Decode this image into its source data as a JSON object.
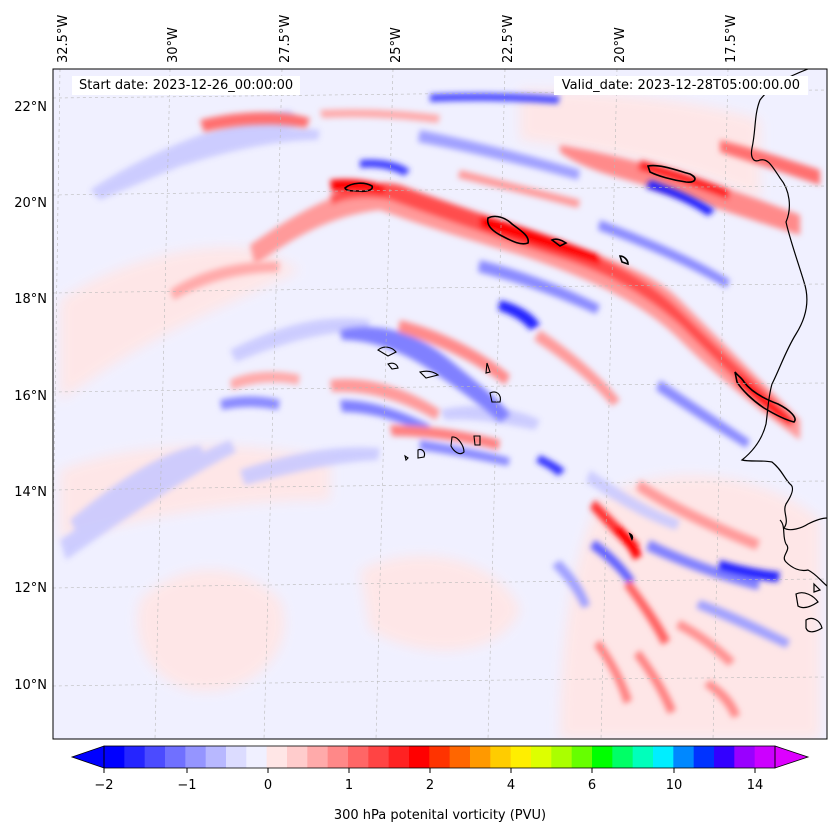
{
  "header": {
    "start_date": "Start date: 2023-12-26_00:00:00",
    "valid_date": "Valid_date: 2023-12-28T05:00:00.00"
  },
  "map": {
    "lon_labels": [
      "32.5°W",
      "30°W",
      "27.5°W",
      "25°W",
      "22.5°W",
      "20°W",
      "17.5°W"
    ],
    "lat_labels": [
      "22°N",
      "20°N",
      "18°N",
      "16°N",
      "14°N",
      "12°N",
      "10°N"
    ],
    "background_color": "#f0f0ff",
    "contour_line_color": "#000000",
    "coastline_color": "#000000"
  },
  "colorbar": {
    "label": "300 hPa potenital vorticity (PVU)",
    "tick_labels": [
      "−2",
      "−1",
      "0",
      "1",
      "2",
      "4",
      "6",
      "10",
      "14"
    ],
    "colors": [
      "#0000ff",
      "#2525ff",
      "#4b4bff",
      "#7070ff",
      "#9595ff",
      "#b8b8ff",
      "#dcdcff",
      "#f0f0ff",
      "#ffe6e6",
      "#ffcccc",
      "#ffaaaa",
      "#ff8888",
      "#ff6666",
      "#ff4444",
      "#ff2222",
      "#ff0000",
      "#ff3300",
      "#ff6600",
      "#ff9900",
      "#ffcc00",
      "#ffee00",
      "#ddff00",
      "#aaff00",
      "#66ff00",
      "#00ff00",
      "#00ff66",
      "#00ffbb",
      "#00eeff",
      "#0088ff",
      "#0033ff",
      "#3300ff",
      "#9900ff",
      "#cc00ff"
    ],
    "under_color": "#0000ff",
    "over_color": "#dd00ff"
  }
}
